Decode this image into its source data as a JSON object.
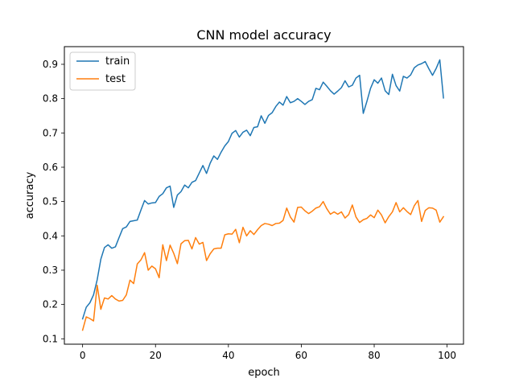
{
  "chart_data": {
    "type": "line",
    "title": "CNN model accuracy",
    "xlabel": "epoch",
    "ylabel": "accuracy",
    "xlim": [
      -5,
      104.5
    ],
    "ylim": [
      0.0843,
      0.9515
    ],
    "xticks": [
      0,
      20,
      40,
      60,
      80,
      100
    ],
    "yticks": [
      0.1,
      0.2,
      0.3,
      0.4,
      0.5,
      0.6,
      0.7,
      0.8,
      0.9
    ],
    "grid": false,
    "legend": "top-left",
    "x": [
      0,
      1,
      2,
      3,
      4,
      5,
      6,
      7,
      8,
      9,
      10,
      11,
      12,
      13,
      14,
      15,
      16,
      17,
      18,
      19,
      20,
      21,
      22,
      23,
      24,
      25,
      26,
      27,
      28,
      29,
      30,
      31,
      32,
      33,
      34,
      35,
      36,
      37,
      38,
      39,
      40,
      41,
      42,
      43,
      44,
      45,
      46,
      47,
      48,
      49,
      50,
      51,
      52,
      53,
      54,
      55,
      56,
      57,
      58,
      59,
      60,
      61,
      62,
      63,
      64,
      65,
      66,
      67,
      68,
      69,
      70,
      71,
      72,
      73,
      74,
      75,
      76,
      77,
      78,
      79,
      80,
      81,
      82,
      83,
      84,
      85,
      86,
      87,
      88,
      89,
      90,
      91,
      92,
      93,
      94,
      95,
      96,
      97,
      98,
      99
    ],
    "series": [
      {
        "name": "train",
        "color": "#1f77b4",
        "values": [
          0.158,
          0.192,
          0.205,
          0.228,
          0.272,
          0.332,
          0.366,
          0.374,
          0.364,
          0.368,
          0.395,
          0.421,
          0.426,
          0.442,
          0.444,
          0.446,
          0.475,
          0.503,
          0.493,
          0.496,
          0.497,
          0.515,
          0.523,
          0.54,
          0.545,
          0.483,
          0.519,
          0.529,
          0.548,
          0.54,
          0.556,
          0.561,
          0.583,
          0.605,
          0.582,
          0.612,
          0.633,
          0.623,
          0.644,
          0.662,
          0.675,
          0.699,
          0.707,
          0.688,
          0.702,
          0.708,
          0.692,
          0.716,
          0.718,
          0.75,
          0.728,
          0.751,
          0.759,
          0.777,
          0.79,
          0.781,
          0.806,
          0.788,
          0.792,
          0.8,
          0.792,
          0.783,
          0.792,
          0.797,
          0.83,
          0.826,
          0.848,
          0.836,
          0.823,
          0.813,
          0.822,
          0.832,
          0.852,
          0.834,
          0.839,
          0.86,
          0.868,
          0.757,
          0.792,
          0.83,
          0.855,
          0.845,
          0.86,
          0.823,
          0.812,
          0.871,
          0.838,
          0.822,
          0.865,
          0.86,
          0.869,
          0.89,
          0.898,
          0.902,
          0.908,
          0.887,
          0.868,
          0.888,
          0.913,
          0.802
        ]
      },
      {
        "name": "test",
        "color": "#ff7f0e",
        "values": [
          0.125,
          0.164,
          0.159,
          0.152,
          0.256,
          0.186,
          0.219,
          0.216,
          0.226,
          0.216,
          0.21,
          0.212,
          0.228,
          0.271,
          0.261,
          0.318,
          0.33,
          0.351,
          0.3,
          0.312,
          0.304,
          0.278,
          0.374,
          0.328,
          0.373,
          0.349,
          0.319,
          0.377,
          0.386,
          0.387,
          0.362,
          0.395,
          0.376,
          0.381,
          0.328,
          0.348,
          0.362,
          0.364,
          0.364,
          0.403,
          0.406,
          0.405,
          0.419,
          0.38,
          0.425,
          0.4,
          0.415,
          0.404,
          0.418,
          0.43,
          0.436,
          0.434,
          0.43,
          0.436,
          0.437,
          0.445,
          0.481,
          0.455,
          0.44,
          0.483,
          0.484,
          0.473,
          0.465,
          0.472,
          0.481,
          0.485,
          0.5,
          0.479,
          0.463,
          0.47,
          0.463,
          0.47,
          0.452,
          0.462,
          0.49,
          0.455,
          0.439,
          0.447,
          0.451,
          0.461,
          0.453,
          0.475,
          0.461,
          0.438,
          0.456,
          0.47,
          0.497,
          0.47,
          0.482,
          0.471,
          0.462,
          0.488,
          0.503,
          0.442,
          0.474,
          0.482,
          0.481,
          0.475,
          0.44,
          0.456
        ]
      }
    ]
  }
}
